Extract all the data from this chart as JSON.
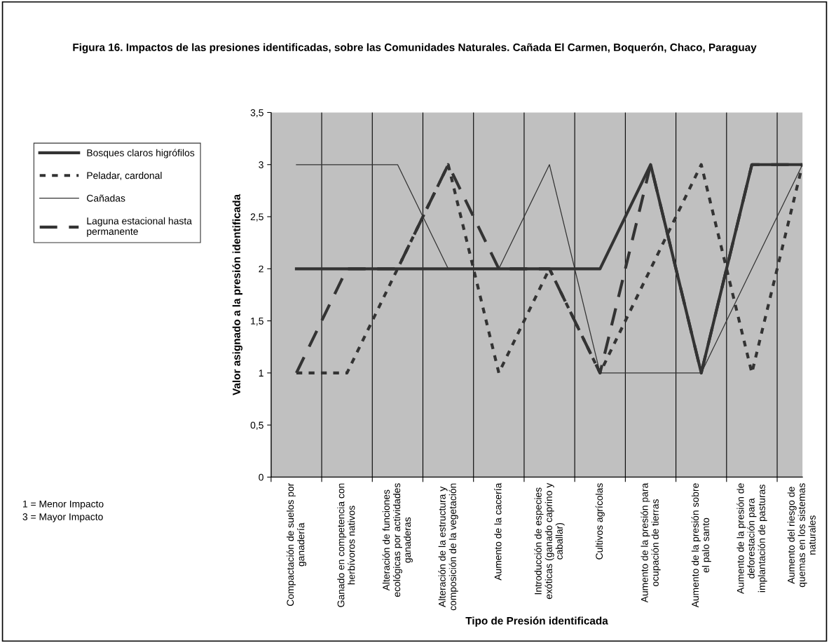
{
  "chart_data": {
    "type": "line",
    "title": "Figura 16. Impactos de las presiones identificadas, sobre las Comunidades Naturales. Cañada El Carmen, Boquerón, Chaco, Paraguay",
    "xlabel": "Tipo de Presión identificada",
    "ylabel": "Valor asignado a la presión identificada",
    "categories": [
      "Compactación de suelos por\nganadería",
      "Ganado en competencia con\nherbívoros nativos",
      "Alteración de funciones\necológicas por actividades\nganaderas",
      "Alteración de la estructura y\ncomposición de la vegetación",
      "Aumento de la cacería",
      "Introducción de especies\nexóticas (ganado caprino y\ncaballar)",
      "Cultivos agrícolas",
      "Aumento de la presión para\nocupación de tierras",
      "Aumento de la presión sobre\nel palo santo",
      "Aumento de la presión de\ndeforestación para\nimplantación de pasturas",
      "Aumento del riesgo de\nquemas en los sistemas\nnaturales"
    ],
    "series": [
      {
        "name": "Bosques claros higrófilos",
        "color": "#333333",
        "line_style": "solid",
        "values": [
          2,
          2,
          2,
          2,
          2,
          2,
          2,
          3,
          1,
          3,
          3
        ]
      },
      {
        "name": "Peladar, cardonal",
        "color": "#333333",
        "line_style": "dotted",
        "values": [
          1,
          1,
          2,
          3,
          1,
          2,
          1,
          2,
          3,
          1,
          3
        ]
      },
      {
        "name": "Cañadas",
        "color": "#333333",
        "line_style": "solid",
        "values": [
          3,
          3,
          3,
          2,
          2,
          3,
          1,
          1,
          1,
          2,
          3
        ]
      },
      {
        "name": "Laguna estacional hasta permanente",
        "color": "#333333",
        "line_style": "dashed",
        "values": [
          1,
          2,
          2,
          3,
          2,
          2,
          1,
          3,
          1,
          3,
          3
        ]
      }
    ],
    "ylim": [
      0,
      3.5
    ],
    "yticks": [
      0,
      {
        "value": 0.5,
        "label": "0,5"
      },
      1,
      {
        "value": 1.5,
        "label": "1,5"
      },
      2,
      {
        "value": 2.5,
        "label": "2,5"
      },
      3,
      {
        "value": 3.5,
        "label": "3,5"
      }
    ],
    "grid": "x",
    "legend": "left",
    "annotations": [
      "1 = Menor Impacto",
      "3 = Mayor Impacto"
    ]
  }
}
